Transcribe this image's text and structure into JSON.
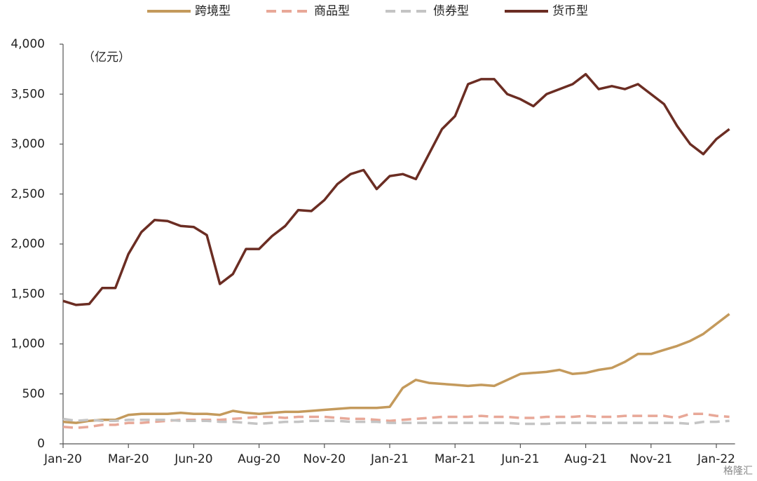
{
  "chart_data": {
    "type": "line",
    "annotation": "（亿元）",
    "watermark": "格隆汇",
    "categories": [
      "Jan-20",
      null,
      null,
      null,
      null,
      "Mar-20",
      null,
      null,
      null,
      null,
      "Jun-20",
      null,
      null,
      null,
      null,
      "Aug-20",
      null,
      null,
      null,
      null,
      "Nov-20",
      null,
      null,
      null,
      null,
      "Jan-21",
      null,
      null,
      null,
      null,
      "Mar-21",
      null,
      null,
      null,
      null,
      "Jun-21",
      null,
      null,
      null,
      null,
      "Aug-21",
      null,
      null,
      null,
      null,
      "Nov-21",
      null,
      null,
      null,
      null,
      "Jan-22",
      null
    ],
    "series": [
      {
        "name": "跨境型",
        "color": "#c49a5c",
        "dash": false,
        "values": [
          220,
          210,
          230,
          240,
          240,
          290,
          300,
          300,
          300,
          310,
          300,
          300,
          290,
          330,
          310,
          300,
          310,
          320,
          320,
          330,
          340,
          350,
          360,
          360,
          360,
          370,
          560,
          640,
          610,
          600,
          590,
          580,
          590,
          580,
          640,
          700,
          710,
          720,
          740,
          700,
          710,
          740,
          760,
          820,
          900,
          900,
          940,
          980,
          1030,
          1100,
          1200,
          1300
        ]
      },
      {
        "name": "商品型",
        "color": "#e8a898",
        "dash": true,
        "values": [
          170,
          160,
          170,
          190,
          190,
          210,
          210,
          220,
          230,
          240,
          240,
          240,
          240,
          250,
          260,
          270,
          270,
          260,
          270,
          270,
          270,
          260,
          250,
          250,
          240,
          230,
          240,
          250,
          260,
          270,
          270,
          270,
          280,
          270,
          270,
          260,
          260,
          270,
          270,
          270,
          280,
          270,
          270,
          280,
          280,
          280,
          280,
          260,
          300,
          300,
          280,
          270
        ]
      },
      {
        "name": "债券型",
        "color": "#c4c4c4",
        "dash": true,
        "values": [
          250,
          230,
          240,
          230,
          230,
          240,
          240,
          240,
          240,
          230,
          230,
          230,
          220,
          220,
          210,
          200,
          210,
          220,
          220,
          230,
          230,
          230,
          220,
          220,
          220,
          210,
          210,
          210,
          210,
          210,
          210,
          210,
          210,
          210,
          210,
          200,
          200,
          200,
          210,
          210,
          210,
          210,
          210,
          210,
          210,
          210,
          210,
          210,
          200,
          220,
          220,
          230
        ]
      },
      {
        "name": "货币型",
        "color": "#6b2d23",
        "dash": false,
        "values": [
          1430,
          1390,
          1400,
          1560,
          1560,
          1900,
          2120,
          2240,
          2230,
          2180,
          2170,
          2090,
          1600,
          1700,
          1950,
          1950,
          2080,
          2180,
          2340,
          2330,
          2440,
          2600,
          2700,
          2740,
          2550,
          2680,
          2700,
          2650,
          2900,
          3150,
          3280,
          3600,
          3650,
          3650,
          3500,
          3450,
          3380,
          3500,
          3550,
          3600,
          3700,
          3550,
          3580,
          3550,
          3600,
          3500,
          3400,
          3180,
          3000,
          2900,
          3050,
          3150
        ]
      }
    ],
    "ylim": [
      0,
      4000
    ],
    "yticks": [
      0,
      500,
      {
        "value": 1000,
        "label": "1,000"
      },
      {
        "value": 1500,
        "label": "1,500"
      },
      {
        "value": 2000,
        "label": "2,000"
      },
      {
        "value": 2500,
        "label": "2,500"
      },
      {
        "value": 3000,
        "label": "3,000"
      },
      {
        "value": 3500,
        "label": "3,500"
      },
      {
        "value": 4000,
        "label": "4,000"
      }
    ],
    "grid": false,
    "legend": "top"
  }
}
